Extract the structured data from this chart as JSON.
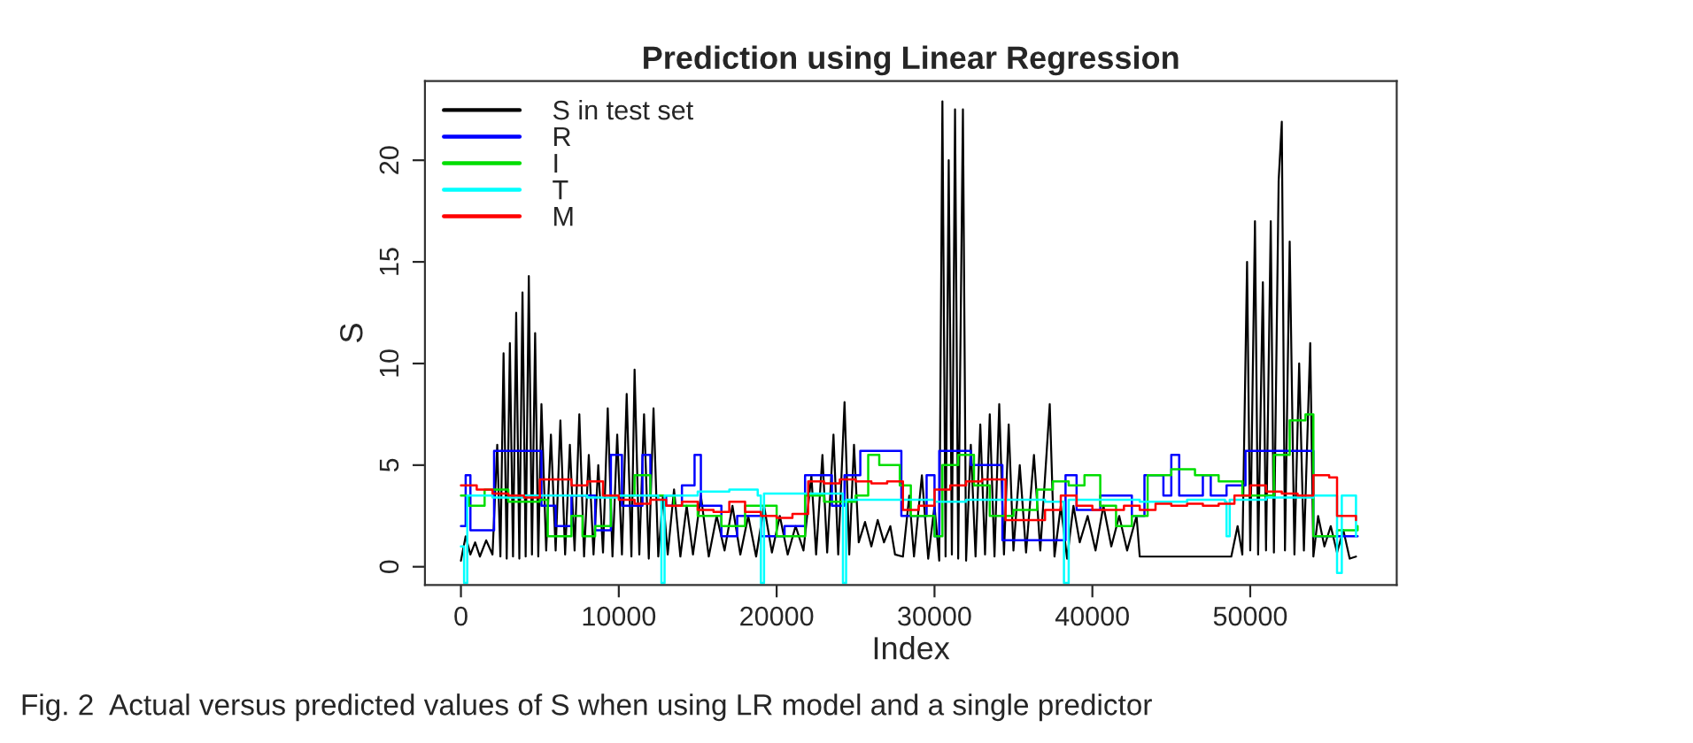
{
  "chart_data": {
    "type": "line",
    "title": "Prediction using Linear Regression",
    "xlabel": "Index",
    "ylabel": "S",
    "annotations": [
      "Fig. 2  Actual versus predicted values of S when using LR model and a single predictor"
    ],
    "xlim": [
      -2280,
      59280
    ],
    "ylim": [
      -0.9,
      23.9
    ],
    "xticks": [
      0,
      10000,
      20000,
      30000,
      40000,
      50000
    ],
    "yticks": [
      0,
      5,
      10,
      15,
      20
    ],
    "grid": false,
    "legend": "top left",
    "line_style": "solid",
    "marker": "none",
    "series": [
      {
        "name": "S in test set",
        "type": "line",
        "color": "#000000",
        "x": [
          0,
          300,
          600,
          900,
          1200,
          1600,
          2000,
          2300,
          2500,
          2700,
          2900,
          3100,
          3300,
          3500,
          3700,
          3900,
          4100,
          4300,
          4500,
          4700,
          4900,
          5100,
          5400,
          5700,
          6000,
          6300,
          6600,
          6900,
          7200,
          7500,
          7800,
          8100,
          8400,
          8700,
          9000,
          9300,
          9600,
          9900,
          10200,
          10500,
          10800,
          11000,
          11300,
          11600,
          11900,
          12200,
          12500,
          12800,
          13100,
          13500,
          13900,
          14300,
          14700,
          15200,
          15700,
          16200,
          16700,
          17200,
          17700,
          18200,
          18700,
          19200,
          19700,
          20200,
          20700,
          21200,
          21700,
          22200,
          22500,
          22900,
          23200,
          23600,
          23900,
          24300,
          24600,
          24900,
          25200,
          25600,
          26000,
          26400,
          26800,
          27200,
          27500,
          28000,
          28400,
          28700,
          29200,
          29600,
          30000,
          30300,
          30500,
          30700,
          30900,
          31100,
          31300,
          31500,
          31800,
          32000,
          32300,
          32600,
          32900,
          33200,
          33500,
          33800,
          34100,
          34400,
          34700,
          35000,
          35400,
          35800,
          36300,
          36700,
          37300,
          37600,
          38000,
          38400,
          38800,
          39200,
          39700,
          40200,
          40700,
          41200,
          41700,
          42200,
          42800,
          43000,
          48400,
          48800,
          49200,
          49500,
          49800,
          50000,
          50300,
          50500,
          50800,
          51000,
          51300,
          51500,
          51800,
          52000,
          52200,
          52500,
          52800,
          53100,
          53400,
          53800,
          54000,
          54300,
          54700,
          55100,
          55500,
          55900,
          56300,
          56700
        ],
        "values": [
          0.3,
          1.5,
          0.6,
          1.2,
          0.5,
          1.3,
          0.6,
          6,
          0.5,
          10.5,
          0.4,
          11,
          0.5,
          12.5,
          0.4,
          13.5,
          0.5,
          14.3,
          0.6,
          11.5,
          0.5,
          8,
          0.8,
          6.5,
          0.8,
          7.2,
          0.6,
          6,
          0.8,
          7.5,
          0.5,
          5.5,
          0.6,
          5,
          0.7,
          7.8,
          0.5,
          6.5,
          0.6,
          8.5,
          0.5,
          9.7,
          0.6,
          7.5,
          0.4,
          7.8,
          0.5,
          3.5,
          0.6,
          3.8,
          0.5,
          3,
          0.6,
          3.5,
          0.5,
          2.5,
          0.8,
          3,
          0.6,
          2.5,
          0.5,
          3,
          0.7,
          2.5,
          0.6,
          2,
          0.8,
          4.5,
          0.6,
          5.5,
          0.7,
          6.5,
          0.6,
          8.1,
          0.6,
          6,
          1.2,
          2.2,
          1.0,
          2.3,
          1.2,
          2.0,
          0.6,
          0.5,
          3.5,
          0.5,
          4.5,
          0.4,
          3,
          0.3,
          22.9,
          0.5,
          20,
          0.6,
          22.5,
          0.4,
          22.5,
          0.3,
          6,
          0.5,
          7,
          0.6,
          7.5,
          0.5,
          8,
          0.6,
          7,
          0.8,
          5,
          0.7,
          5.5,
          0.8,
          8,
          0.5,
          3,
          0.4,
          3,
          1.2,
          2.5,
          0.8,
          3,
          1,
          2.5,
          0.8,
          2.5,
          0.5,
          0.5,
          0.5,
          2,
          0.6,
          15,
          0.8,
          17,
          0.6,
          14,
          0.8,
          17,
          0.7,
          19,
          21.9,
          0.8,
          16,
          0.6,
          10,
          0.8,
          11,
          0.5,
          2.5,
          1,
          2,
          0.7,
          1.8,
          0.4,
          0.5
        ]
      },
      {
        "name": "R",
        "type": "step",
        "color": "#0000ff",
        "x": [
          0,
          300,
          600,
          2100,
          5100,
          6000,
          7000,
          8500,
          9500,
          10200,
          11500,
          12000,
          13000,
          14000,
          14800,
          15200,
          16500,
          17500,
          19000,
          20500,
          21800,
          23500,
          24300,
          25300,
          27900,
          29500,
          30000,
          30300,
          32300,
          34300,
          38300,
          39000,
          40500,
          42500,
          43300,
          44500,
          45000,
          45500,
          47000,
          47500,
          48500,
          49700,
          54000,
          56800
        ],
        "values": [
          2.0,
          4.5,
          1.8,
          5.7,
          3.0,
          2.0,
          3.5,
          1.8,
          5.5,
          3.0,
          5.5,
          3.5,
          3.0,
          4.0,
          5.5,
          3.0,
          1.5,
          2.5,
          1.5,
          2.0,
          4.5,
          3.0,
          4.5,
          5.7,
          2.5,
          4.5,
          1.5,
          5.7,
          5.0,
          1.3,
          4.5,
          2.8,
          3.5,
          2.5,
          4.5,
          3.5,
          5.5,
          3.5,
          4.5,
          3.5,
          4.0,
          5.7,
          1.5,
          1.5
        ]
      },
      {
        "name": "I",
        "type": "step",
        "color": "#00dd00",
        "x": [
          0,
          500,
          1500,
          3000,
          5000,
          5500,
          7000,
          7700,
          8500,
          9500,
          11000,
          12000,
          13500,
          15000,
          16500,
          18000,
          20000,
          21800,
          23000,
          25000,
          25800,
          26500,
          27800,
          28500,
          30000,
          30500,
          31500,
          32500,
          33500,
          35000,
          36500,
          37500,
          38500,
          39500,
          40500,
          41500,
          42500,
          43500,
          45000,
          46500,
          48000,
          49500,
          51500,
          52500,
          53500,
          54000,
          55500,
          56800
        ],
        "values": [
          3.5,
          3.0,
          3.8,
          3.2,
          3.3,
          1.5,
          2.5,
          1.5,
          2.0,
          3.5,
          4.5,
          3.5,
          3.0,
          2.5,
          2.0,
          3.0,
          1.5,
          3.5,
          3.2,
          3.5,
          5.5,
          5.0,
          4.0,
          2.5,
          1.5,
          5.0,
          5.5,
          4.0,
          2.5,
          2.8,
          3.8,
          4.2,
          4.0,
          4.5,
          3.0,
          2.0,
          2.5,
          4.5,
          4.8,
          4.5,
          4.2,
          3.5,
          5.5,
          7.2,
          7.5,
          1.5,
          1.8,
          2.0
        ]
      },
      {
        "name": "T",
        "type": "step",
        "color": "#00ffff",
        "x": [
          0,
          200,
          400,
          2000,
          4000,
          6000,
          8000,
          10000,
          12500,
          12700,
          12900,
          15000,
          17000,
          18800,
          19000,
          19200,
          21000,
          24100,
          24200,
          24400,
          27000,
          30000,
          32000,
          35000,
          37000,
          38200,
          38500,
          41000,
          43000,
          46000,
          48400,
          48500,
          48700,
          51000,
          54000,
          55500,
          55800,
          56700
        ],
        "values": [
          1,
          -0.8,
          3.5,
          3.4,
          3.5,
          3.5,
          3.4,
          3.5,
          3.3,
          -0.8,
          3.5,
          3.7,
          3.8,
          3.5,
          -0.8,
          3.6,
          3.6,
          3.6,
          -0.8,
          3.3,
          3.3,
          3.2,
          3.3,
          3.3,
          3.2,
          -0.8,
          3.3,
          3.3,
          3.2,
          3.3,
          3.2,
          1.5,
          3.3,
          3.4,
          3.5,
          -0.3,
          3.5,
          1.5
        ]
      },
      {
        "name": "M",
        "type": "step",
        "color": "#ff0000",
        "x": [
          0,
          1000,
          2000,
          3000,
          4000,
          5000,
          6000,
          7000,
          8000,
          9000,
          10000,
          11000,
          12000,
          13000,
          14000,
          15000,
          16000,
          17000,
          18000,
          19000,
          20000,
          21000,
          22000,
          23000,
          24000,
          25000,
          26000,
          27000,
          28000,
          29000,
          30000,
          31000,
          32000,
          33000,
          34000,
          34500,
          36000,
          37000,
          38000,
          39000,
          40000,
          41000,
          42000,
          43000,
          44000,
          45000,
          46000,
          47000,
          48000,
          49000,
          50000,
          51000,
          52000,
          53000,
          54000,
          55000,
          55500,
          56700
        ],
        "values": [
          4.0,
          3.8,
          3.6,
          3.5,
          3.4,
          4.3,
          4.3,
          4.0,
          4.2,
          3.5,
          3.3,
          3.1,
          3.3,
          3.0,
          3.2,
          2.8,
          2.7,
          3.2,
          2.7,
          2.5,
          2.4,
          2.6,
          4.2,
          4.1,
          4.3,
          4.2,
          4.1,
          4.2,
          2.8,
          3.0,
          3.8,
          4.0,
          4.2,
          4.3,
          4.3,
          2.3,
          2.3,
          2.8,
          3.5,
          3.0,
          2.8,
          2.8,
          3.0,
          2.8,
          3.1,
          3.0,
          3.1,
          3.0,
          3.1,
          3.5,
          4.0,
          3.7,
          3.6,
          3.5,
          4.5,
          4.4,
          2.5,
          2.3
        ]
      }
    ]
  }
}
